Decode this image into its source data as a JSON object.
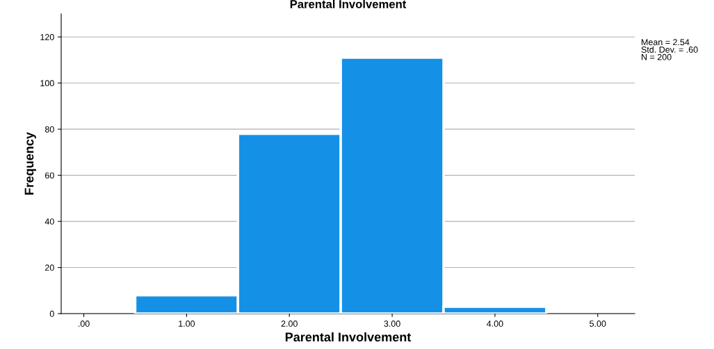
{
  "chart_data": {
    "type": "histogram",
    "title": "Parental Involvement",
    "xlabel": "Parental Involvement",
    "ylabel": "Frequency",
    "bins": [
      0.5,
      1.5,
      2.5,
      3.5,
      4.5
    ],
    "values": [
      8,
      78,
      111,
      3
    ],
    "color": "#1491e6",
    "xlim": [
      -0.22,
      5.36
    ],
    "xticks": [
      {
        "value": 0,
        "label": ".00"
      },
      {
        "value": 1,
        "label": "1.00"
      },
      {
        "value": 2,
        "label": "2.00"
      },
      {
        "value": 3,
        "label": "3.00"
      },
      {
        "value": 4,
        "label": "4.00"
      },
      {
        "value": 5,
        "label": "5.00"
      }
    ],
    "ylim": [
      0,
      130
    ],
    "yticks": [
      0,
      20,
      40,
      60,
      80,
      100,
      120
    ],
    "grid": "y",
    "annotations": [
      "Mean = 2.54\nStd. Dev. = .60\nN = 200"
    ]
  }
}
